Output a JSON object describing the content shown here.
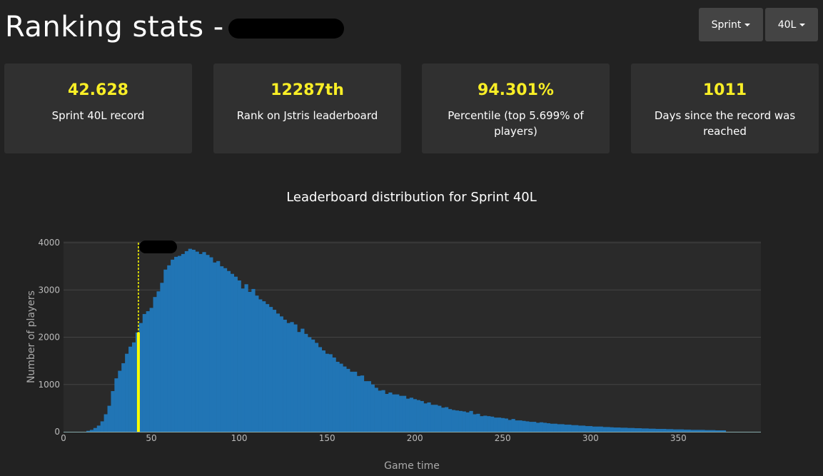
{
  "header": {
    "title": "Ranking stats -",
    "mode_label": "Sprint",
    "variant_label": "40L"
  },
  "stats": [
    {
      "value": "42.628",
      "label": "Sprint 40L record"
    },
    {
      "value": "12287th",
      "label": "Rank on Jstris leaderboard"
    },
    {
      "value": "94.301%",
      "label": "Percentile (top 5.699% of players)"
    },
    {
      "value": "1011",
      "label": "Days since the record was reached"
    }
  ],
  "colors": {
    "background": "#222222",
    "card": "#303030",
    "accent": "#f8ee26",
    "bar": "#2175b5",
    "marker": "#ffff00"
  },
  "chart_data": {
    "type": "bar",
    "title": "Leaderboard distribution for Sprint 40L",
    "xlabel": "Game time",
    "ylabel": "Number of players",
    "xlim": [
      0,
      397
    ],
    "ylim": [
      0,
      4000
    ],
    "x_ticks": [
      0,
      50,
      100,
      150,
      200,
      250,
      300,
      350
    ],
    "y_ticks": [
      0,
      1000,
      2000,
      3000,
      4000
    ],
    "bin_start": 13,
    "bin_width": 2,
    "values": [
      20,
      40,
      80,
      130,
      220,
      370,
      550,
      860,
      1130,
      1290,
      1450,
      1650,
      1800,
      1890,
      2100,
      2300,
      2490,
      2550,
      2620,
      2850,
      2970,
      3150,
      3430,
      3520,
      3640,
      3700,
      3720,
      3760,
      3820,
      3870,
      3850,
      3810,
      3760,
      3800,
      3740,
      3690,
      3580,
      3610,
      3500,
      3460,
      3400,
      3340,
      3280,
      3200,
      3030,
      3120,
      2960,
      3020,
      2880,
      2800,
      2760,
      2700,
      2640,
      2580,
      2500,
      2440,
      2370,
      2300,
      2320,
      2270,
      2110,
      2180,
      2070,
      2000,
      1950,
      1880,
      1790,
      1720,
      1650,
      1640,
      1570,
      1480,
      1440,
      1380,
      1330,
      1270,
      1270,
      1180,
      1190,
      1070,
      1070,
      1000,
      930,
      870,
      880,
      800,
      830,
      790,
      790,
      760,
      760,
      700,
      720,
      690,
      670,
      650,
      600,
      620,
      570,
      570,
      550,
      510,
      520,
      480,
      460,
      450,
      440,
      430,
      410,
      440,
      370,
      380,
      330,
      340,
      330,
      320,
      300,
      300,
      290,
      280,
      250,
      270,
      240,
      240,
      230,
      220,
      210,
      210,
      190,
      200,
      190,
      180,
      170,
      170,
      160,
      160,
      150,
      150,
      140,
      140,
      130,
      130,
      120,
      120,
      110,
      110,
      110,
      100,
      100,
      95,
      90,
      90,
      85,
      85,
      80,
      80,
      75,
      75,
      70,
      70,
      65,
      65,
      60,
      60,
      60,
      55,
      55,
      50,
      50,
      50,
      45,
      45,
      40,
      40,
      40,
      40,
      35,
      35,
      35,
      30,
      30,
      30
    ],
    "marker": {
      "x": 42.628,
      "bin_value": 2100
    }
  }
}
